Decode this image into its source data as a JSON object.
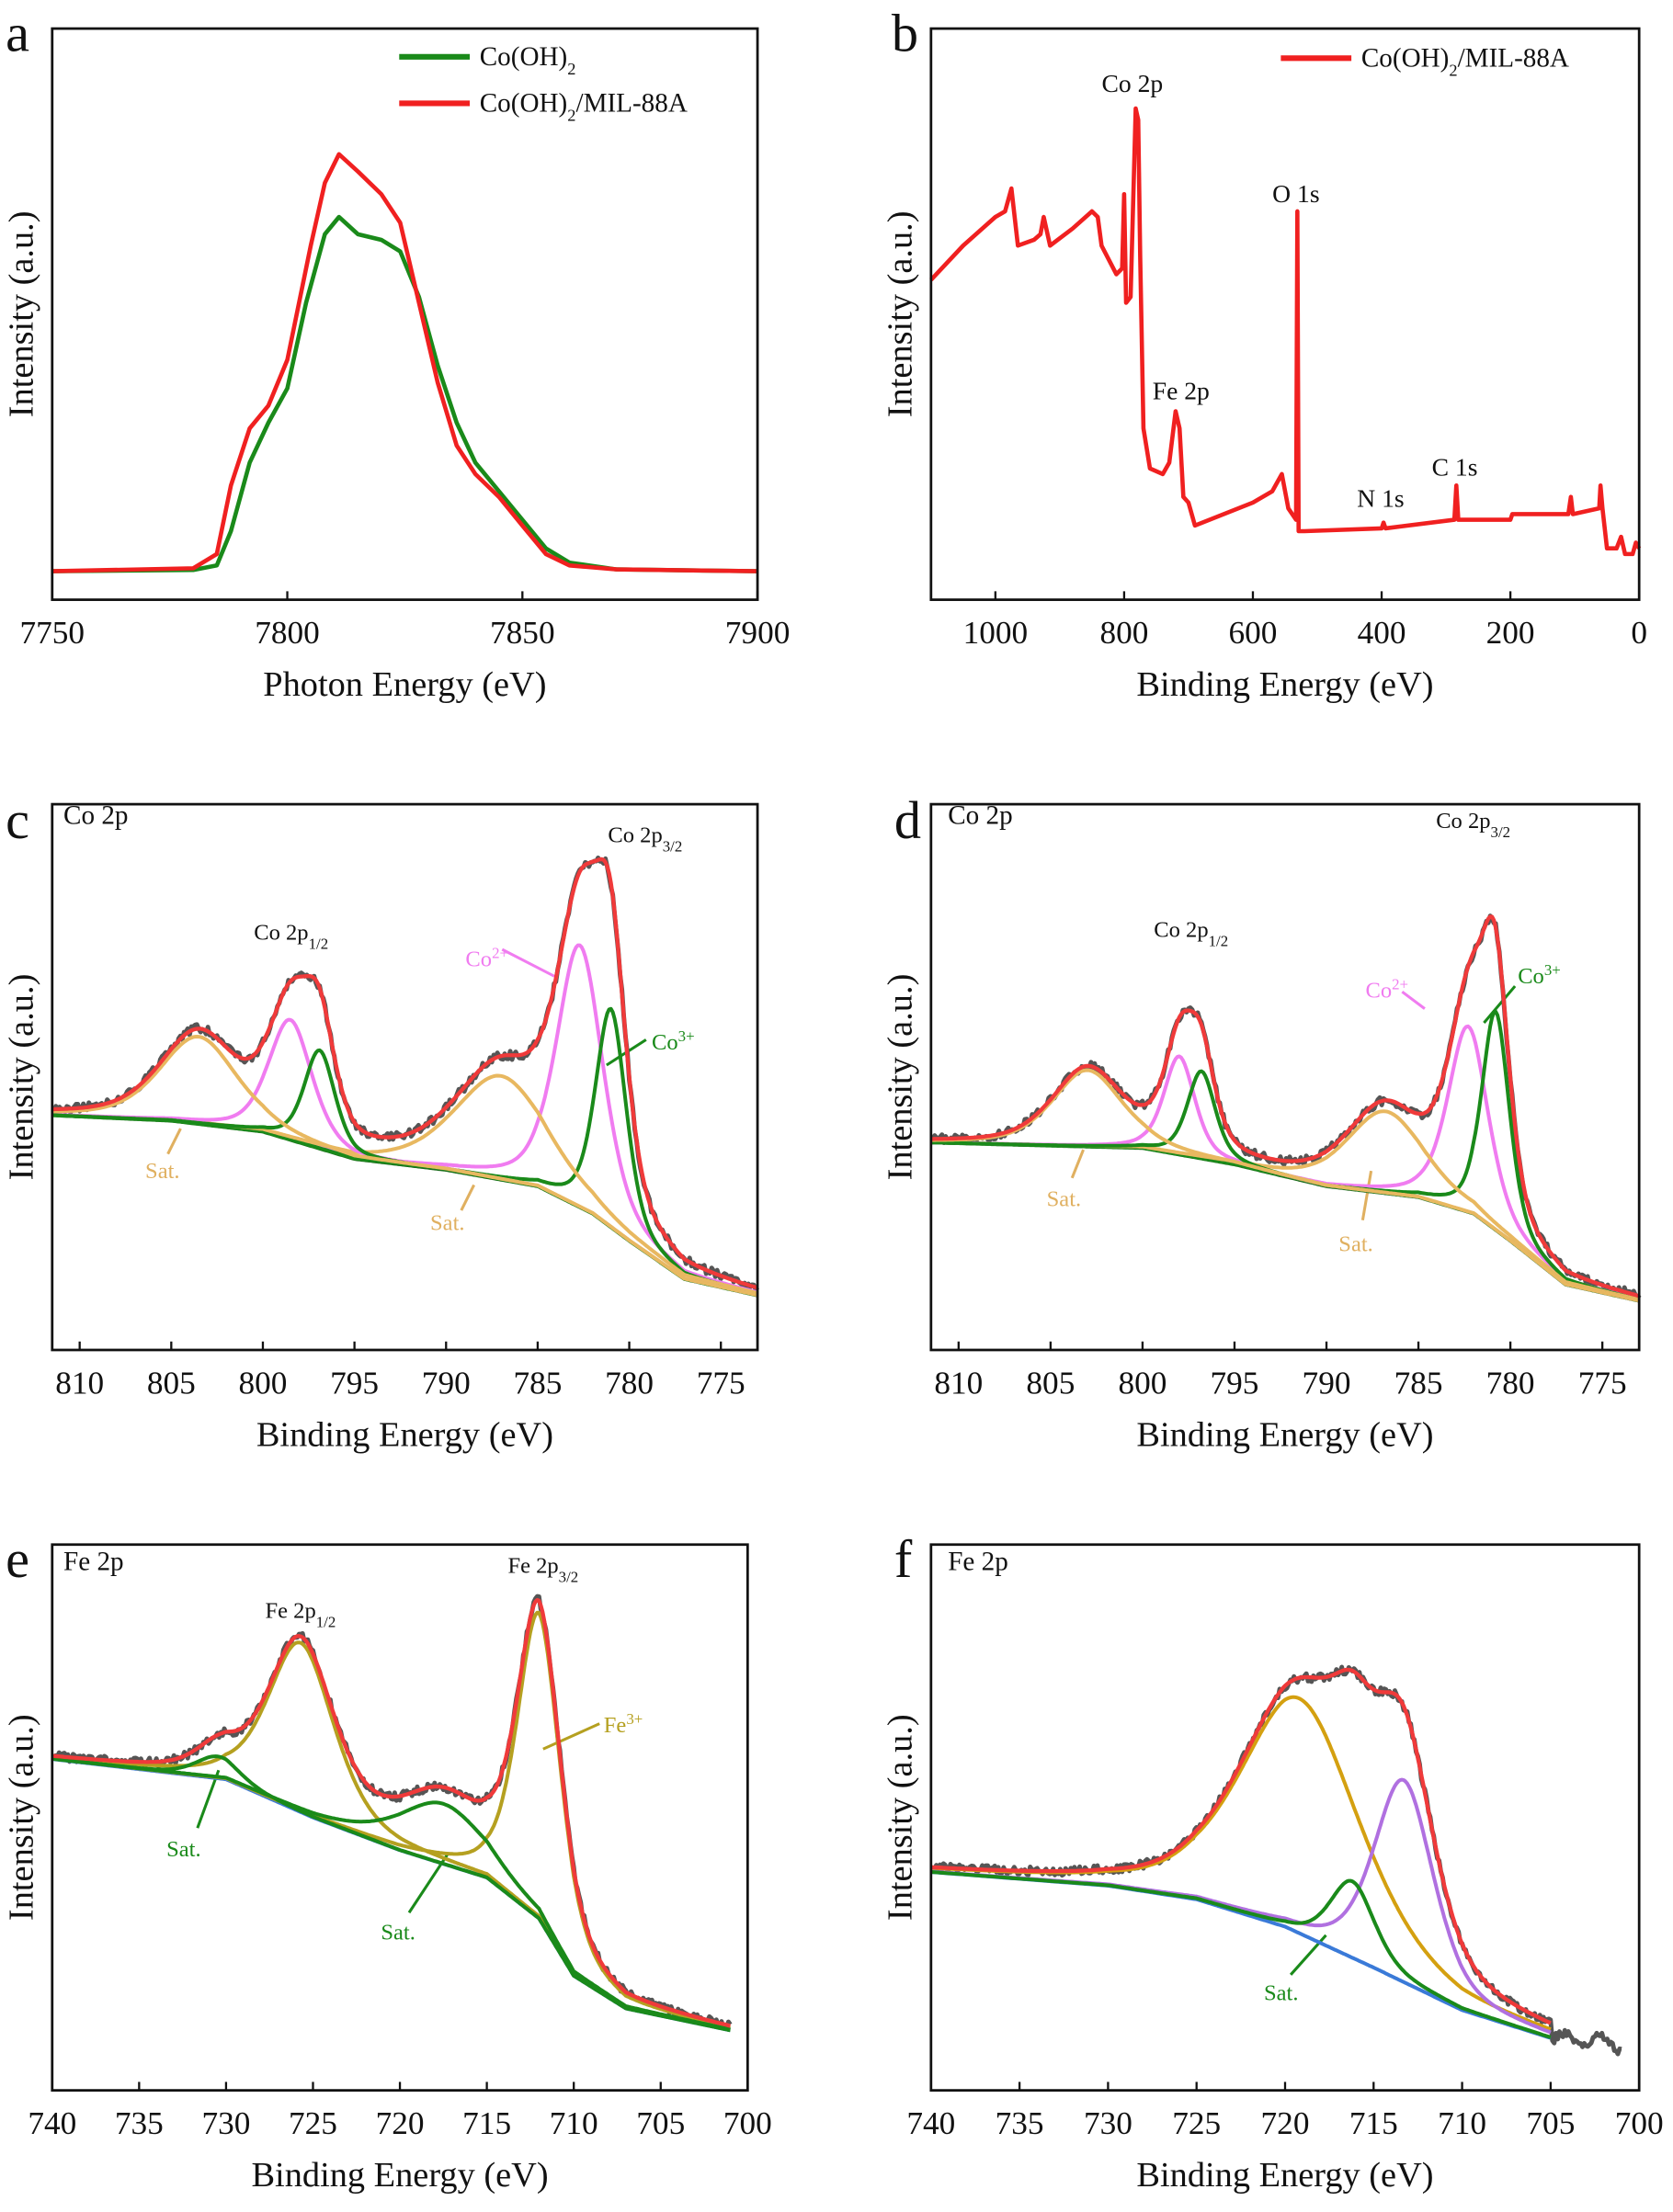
{
  "chart_data": [
    {
      "panel": "a",
      "type": "line",
      "xlabel": "Photon Energy (eV)",
      "ylabel": "Intensity (a.u.)",
      "xlim": [
        7750,
        7900
      ],
      "ylim": [
        0,
        100
      ],
      "xticks": [
        7750,
        7800,
        7850,
        7900
      ],
      "grid": false,
      "legend": "top-right",
      "series": [
        {
          "name": "Co(OH)2",
          "color": "#1a8a1a",
          "points": [
            [
              7750,
              5
            ],
            [
              7780,
              5.2
            ],
            [
              7785,
              6
            ],
            [
              7788,
              12
            ],
            [
              7792,
              24
            ],
            [
              7796,
              31
            ],
            [
              7800,
              37
            ],
            [
              7804,
              52
            ],
            [
              7808,
              64
            ],
            [
              7811,
              67
            ],
            [
              7815,
              64
            ],
            [
              7820,
              63
            ],
            [
              7824,
              61
            ],
            [
              7828,
              53
            ],
            [
              7832,
              41
            ],
            [
              7836,
              31
            ],
            [
              7840,
              24
            ],
            [
              7845,
              19
            ],
            [
              7850,
              14
            ],
            [
              7855,
              9
            ],
            [
              7860,
              6.5
            ],
            [
              7870,
              5.3
            ],
            [
              7900,
              5
            ]
          ]
        },
        {
          "name": "Co(OH)2/MIL-88A",
          "color": "#f02020",
          "points": [
            [
              7750,
              5
            ],
            [
              7780,
              5.5
            ],
            [
              7785,
              8
            ],
            [
              7788,
              20
            ],
            [
              7792,
              30
            ],
            [
              7796,
              34
            ],
            [
              7800,
              42
            ],
            [
              7805,
              62
            ],
            [
              7808,
              73
            ],
            [
              7811,
              78
            ],
            [
              7815,
              75
            ],
            [
              7820,
              71
            ],
            [
              7824,
              66
            ],
            [
              7828,
              52
            ],
            [
              7832,
              38
            ],
            [
              7836,
              27
            ],
            [
              7840,
              22
            ],
            [
              7845,
              18
            ],
            [
              7850,
              13
            ],
            [
              7855,
              8
            ],
            [
              7860,
              6
            ],
            [
              7870,
              5.3
            ],
            [
              7900,
              5
            ]
          ]
        }
      ],
      "legend_items": [
        {
          "main": "Co(OH)",
          "sub": "2",
          "tail": ""
        },
        {
          "main": "Co(OH)",
          "sub": "2",
          "tail": "/MIL-88A"
        }
      ]
    },
    {
      "panel": "b",
      "type": "line",
      "xlabel": "Binding Energy (eV)",
      "ylabel": "Intensity (a.u.)",
      "xlim": [
        1100,
        0
      ],
      "ylim": [
        0,
        100
      ],
      "xticks": [
        1000,
        800,
        600,
        400,
        200,
        0
      ],
      "grid": false,
      "legend": "top-right",
      "series": [
        {
          "name": "Co(OH)2/MIL-88A",
          "color": "#f02020",
          "points": [
            [
              1100,
              56
            ],
            [
              1050,
              62
            ],
            [
              1000,
              67
            ],
            [
              985,
              68
            ],
            [
              975,
              72
            ],
            [
              965,
              62
            ],
            [
              940,
              63
            ],
            [
              930,
              64
            ],
            [
              925,
              67
            ],
            [
              915,
              62
            ],
            [
              880,
              65
            ],
            [
              850,
              68
            ],
            [
              841,
              67
            ],
            [
              835,
              62
            ],
            [
              812,
              57
            ],
            [
              803,
              58
            ],
            [
              800,
              71
            ],
            [
              797,
              52
            ],
            [
              790,
              53
            ],
            [
              782,
              86
            ],
            [
              778,
              84
            ],
            [
              775,
              60
            ],
            [
              770,
              30
            ],
            [
              760,
              23
            ],
            [
              740,
              22
            ],
            [
              730,
              24
            ],
            [
              720,
              33
            ],
            [
              714,
              30
            ],
            [
              708,
              18
            ],
            [
              700,
              17
            ],
            [
              690,
              13
            ],
            [
              600,
              17
            ],
            [
              570,
              19
            ],
            [
              555,
              22
            ],
            [
              545,
              16
            ],
            [
              533,
              14
            ],
            [
              531,
              68
            ],
            [
              529,
              12
            ],
            [
              520,
              12
            ],
            [
              400,
              12.5
            ],
            [
              397,
              13.5
            ],
            [
              394,
              12.5
            ],
            [
              287,
              14
            ],
            [
              284,
              20
            ],
            [
              281,
              14
            ],
            [
              200,
              14
            ],
            [
              197,
              15
            ],
            [
              110,
              15
            ],
            [
              106,
              18
            ],
            [
              103,
              15
            ],
            [
              62,
              16
            ],
            [
              60,
              20
            ],
            [
              57,
              16
            ],
            [
              50,
              9
            ],
            [
              35,
              9
            ],
            [
              28,
              11
            ],
            [
              22,
              8
            ],
            [
              10,
              8
            ],
            [
              5,
              10
            ],
            [
              0,
              9
            ]
          ]
        }
      ],
      "legend_items": [
        {
          "main": "Co(OH)",
          "sub": "2",
          "tail": "/MIL-88A"
        }
      ],
      "peak_labels": [
        "Co 2p",
        "O 1s",
        "Fe 2p",
        "N 1s",
        "C 1s"
      ]
    },
    {
      "panel": "c",
      "type": "line",
      "title": "Co 2p",
      "xlabel": "Binding Energy (eV)",
      "ylabel": "Intensity (a.u.)",
      "xlim": [
        811.5,
        773
      ],
      "ylim": [
        0,
        100
      ],
      "xticks": [
        810,
        805,
        800,
        795,
        790,
        785,
        780,
        775
      ],
      "grid": false,
      "background": [
        [
          811.5,
          43
        ],
        [
          805,
          42
        ],
        [
          800,
          40
        ],
        [
          795,
          35
        ],
        [
          790,
          33
        ],
        [
          785,
          30
        ],
        [
          782,
          25
        ],
        [
          780,
          20
        ],
        [
          777,
          13
        ],
        [
          773,
          10
        ]
      ],
      "components": [
        {
          "label": "Co2+",
          "center": 782.7,
          "fwhm": 3.0,
          "height": 48,
          "color": "#f07cf0"
        },
        {
          "label": "Co3+",
          "center": 781.0,
          "fwhm": 2.0,
          "height": 40,
          "color": "#1a8a1a"
        },
        {
          "label": "Sat.",
          "center": 787.0,
          "fwhm": 6.0,
          "height": 19,
          "color": "#e8b860"
        },
        {
          "label": "Co2+",
          "center": 798.5,
          "fwhm": 2.8,
          "height": 22,
          "color": "#f07cf0"
        },
        {
          "label": "Co3+",
          "center": 796.9,
          "fwhm": 2.0,
          "height": 18,
          "color": "#1a8a1a"
        },
        {
          "label": "Sat.",
          "center": 803.5,
          "fwhm": 5.0,
          "height": 16,
          "color": "#e8b860"
        }
      ],
      "background_color": "#1a6a1a",
      "envelope_color": "#f03a3a",
      "raw_color": "#555555",
      "annotations": {
        "p32": {
          "main": "Co 2p",
          "sub": "3/2"
        },
        "p12": {
          "main": "Co 2p",
          "sub": "1/2"
        },
        "co2": {
          "main": "Co",
          "sup": "2+"
        },
        "co3": {
          "main": "Co",
          "sup": "3+"
        },
        "sat": "Sat."
      }
    },
    {
      "panel": "d",
      "type": "line",
      "title": "Co 2p",
      "xlabel": "Binding Energy (eV)",
      "ylabel": "Intensity (a.u.)",
      "xlim": [
        811.5,
        773
      ],
      "ylim": [
        0,
        100
      ],
      "xticks": [
        810,
        805,
        800,
        795,
        790,
        785,
        780,
        775
      ],
      "grid": false,
      "background": [
        [
          811.5,
          38
        ],
        [
          800,
          37
        ],
        [
          795,
          34
        ],
        [
          790,
          30
        ],
        [
          785,
          28
        ],
        [
          782,
          25
        ],
        [
          780,
          20
        ],
        [
          777,
          12
        ],
        [
          773,
          9
        ]
      ],
      "components": [
        {
          "label": "Co2+",
          "center": 782.3,
          "fwhm": 2.6,
          "height": 34,
          "color": "#f07cf0"
        },
        {
          "label": "Co3+",
          "center": 780.8,
          "fwhm": 1.8,
          "height": 40,
          "color": "#1a8a1a"
        },
        {
          "label": "Sat.",
          "center": 786.8,
          "fwhm": 5.0,
          "height": 15,
          "color": "#e8b860"
        },
        {
          "label": "Co2+",
          "center": 798.0,
          "fwhm": 2.0,
          "height": 18,
          "color": "#f07cf0"
        },
        {
          "label": "Co3+",
          "center": 796.8,
          "fwhm": 1.8,
          "height": 16,
          "color": "#1a8a1a"
        },
        {
          "label": "Sat.",
          "center": 803.0,
          "fwhm": 4.5,
          "height": 14,
          "color": "#e8b860"
        }
      ],
      "background_color": "#1a6a1a",
      "envelope_color": "#f03a3a",
      "raw_color": "#555555",
      "annotations": {
        "p32": {
          "main": "Co 2p",
          "sub": "3/2"
        },
        "p12": {
          "main": "Co 2p",
          "sub": "1/2"
        },
        "co2": {
          "main": "Co",
          "sup": "2+"
        },
        "co3": {
          "main": "Co",
          "sup": "3+"
        },
        "sat": "Sat."
      }
    },
    {
      "panel": "e",
      "type": "line",
      "title": "Fe 2p",
      "xlabel": "Binding Energy (eV)",
      "ylabel": "Intensity (a.u.)",
      "xlim": [
        740,
        700
      ],
      "ylim": [
        0,
        100
      ],
      "xticks": [
        740,
        735,
        730,
        725,
        720,
        715,
        710,
        705,
        700
      ],
      "grid": false,
      "background": [
        [
          740,
          60.7
        ],
        [
          730,
          57
        ],
        [
          725,
          50
        ],
        [
          720,
          44
        ],
        [
          715,
          39
        ],
        [
          712,
          31.5
        ],
        [
          710,
          21
        ],
        [
          707,
          15
        ],
        [
          701,
          11
        ]
      ],
      "components": [
        {
          "label": "Fe3+",
          "center": 712.0,
          "fwhm": 3.0,
          "height": 56,
          "color": "#b5a020"
        },
        {
          "label": "Fe3+",
          "center": 725.7,
          "fwhm": 4.5,
          "height": 31,
          "color": "#b5a020"
        },
        {
          "label": "Sat.",
          "center": 717.5,
          "fwhm": 6.0,
          "height": 11,
          "color": "#1a8a1a"
        },
        {
          "label": "Sat.",
          "center": 730.5,
          "fwhm": 3.0,
          "height": 4,
          "color": "#1a8a1a"
        }
      ],
      "background_color": "#3a7ad8",
      "envelope_color": "#f03a3a",
      "raw_color": "#555555",
      "annotations": {
        "p32": {
          "main": "Fe 2p",
          "sub": "3/2"
        },
        "p12": {
          "main": "Fe 2p",
          "sub": "1/2"
        },
        "fe3": {
          "main": "Fe",
          "sup": "3+"
        },
        "sat": "Sat."
      }
    },
    {
      "panel": "f",
      "type": "line",
      "title": "Fe 2p",
      "xlabel": "Binding Energy (eV)",
      "ylabel": "Intensity (a.u.)",
      "xlim": [
        740,
        700
      ],
      "ylim": [
        0,
        100
      ],
      "xticks": [
        740,
        735,
        730,
        725,
        720,
        715,
        710,
        705,
        700
      ],
      "grid": false,
      "background": [
        [
          740,
          40
        ],
        [
          730,
          37.5
        ],
        [
          725,
          35
        ],
        [
          720,
          30
        ],
        [
          715,
          22.5
        ],
        [
          710,
          14.7
        ],
        [
          705,
          9.6
        ]
      ],
      "components": [
        {
          "center": 719.2,
          "fwhm": 8.0,
          "height": 43,
          "color": "#d4a010"
        },
        {
          "center": 713.3,
          "fwhm": 4.0,
          "height": 37,
          "color": "#b070e0"
        },
        {
          "label": "Sat.",
          "center": 716.2,
          "fwhm": 3.0,
          "height": 14,
          "color": "#1a8a1a"
        }
      ],
      "background_color": "#3a7ad8",
      "envelope_color": "#f03a3a",
      "raw_color": "#555555",
      "annotations": {
        "sat": "Sat."
      }
    }
  ]
}
